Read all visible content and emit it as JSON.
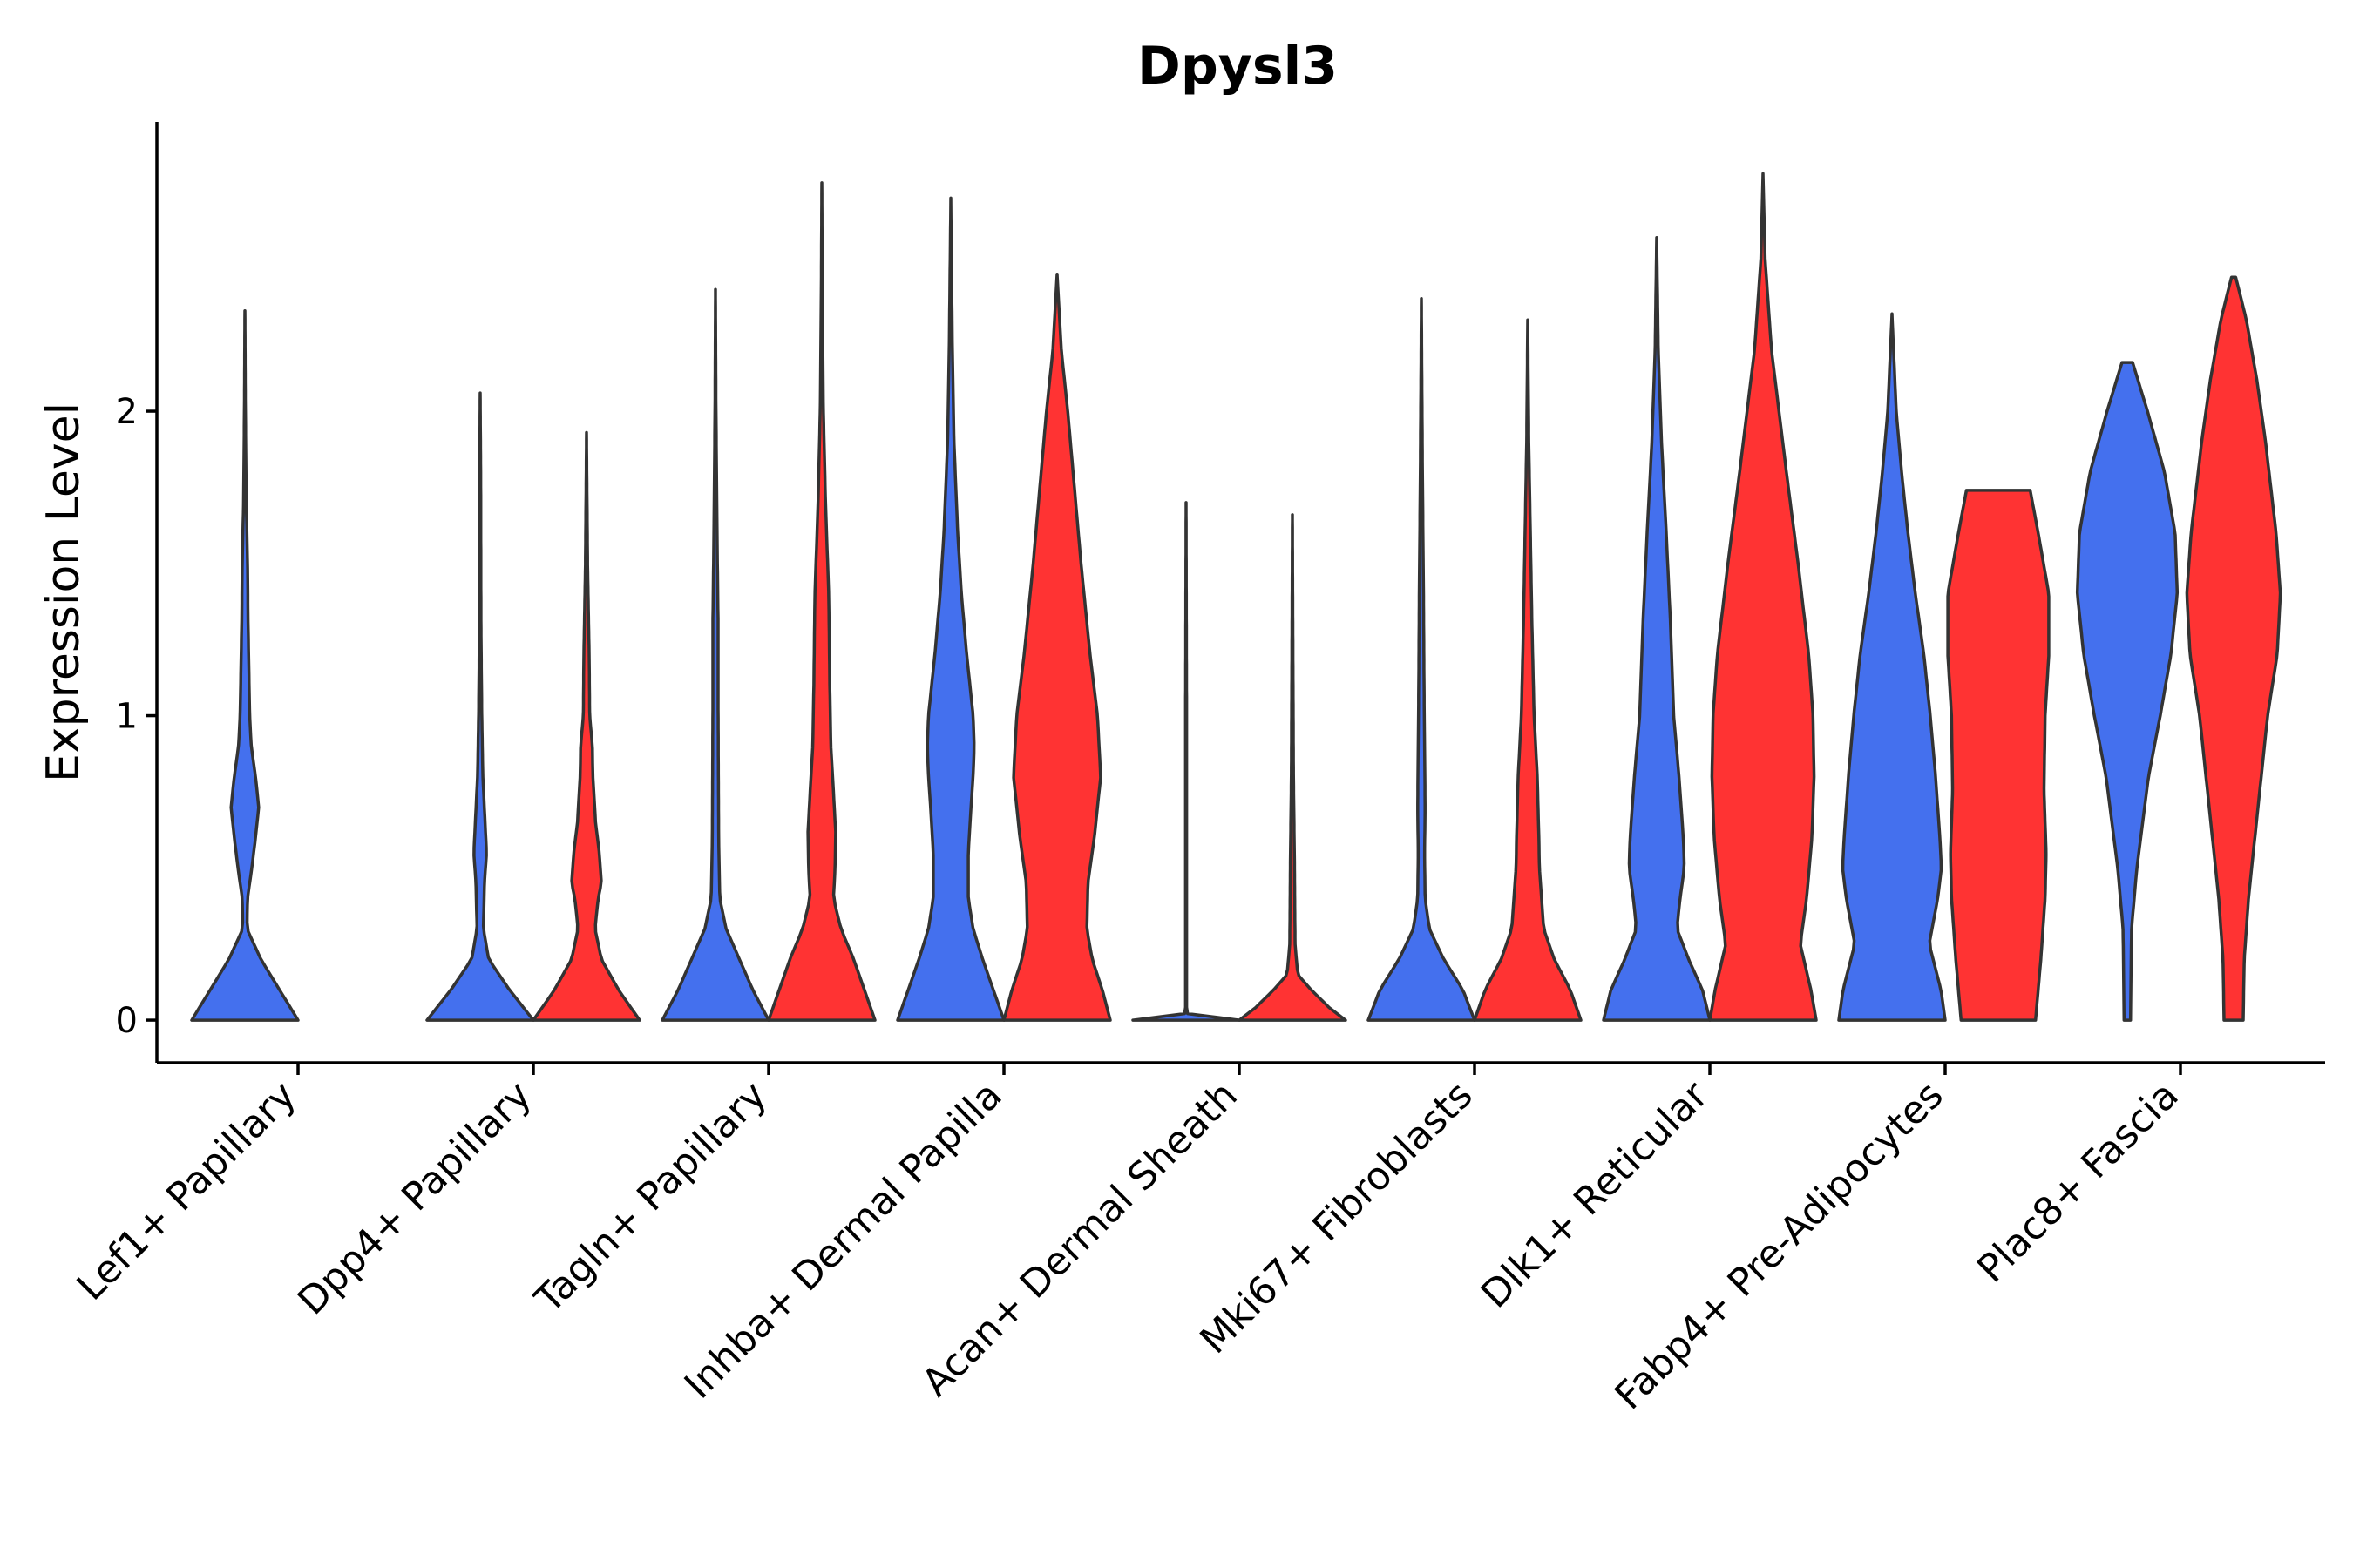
{
  "chart_data": {
    "type": "violin",
    "title": "Dpysl3",
    "xlabel": "",
    "ylabel": "Expression Level",
    "ylim": [
      -0.14,
      2.95
    ],
    "yticks": [
      0,
      1,
      2
    ],
    "legend": "none",
    "grid": false,
    "series_colors": {
      "blue": "#4470EE",
      "red": "#FF3333"
    },
    "categories": [
      "Lef1+ Papillary",
      "Dpp4+ Papillary",
      "Tagln+ Papillary",
      "Inhba+ Dermal Papilla",
      "Acan+ Dermal Sheath",
      "Mki67+ Fibroblasts",
      "Dlk1+ Reticular",
      "Fabp4+ Pre-Adipocytes",
      "Plac8+ Fascia"
    ],
    "violins": [
      {
        "category": "Lef1+ Papillary",
        "color": "blue",
        "min": 0,
        "max": 2.33,
        "profile": [
          [
            0,
            1.0
          ],
          [
            0.1,
            0.65
          ],
          [
            0.2,
            0.3
          ],
          [
            0.3,
            0.04
          ],
          [
            0.4,
            0.05
          ],
          [
            0.5,
            0.13
          ],
          [
            0.6,
            0.2
          ],
          [
            0.7,
            0.26
          ],
          [
            0.8,
            0.2
          ],
          [
            0.9,
            0.12
          ],
          [
            1.0,
            0.09
          ],
          [
            1.3,
            0.06
          ],
          [
            1.5,
            0.05
          ],
          [
            1.7,
            0.025
          ],
          [
            2.0,
            0.01
          ],
          [
            2.33,
            0
          ]
        ]
      },
      {
        "category": "Dpp4+ Papillary",
        "color": "blue",
        "min": 0,
        "max": 2.06,
        "profile": [
          [
            0,
            1.0
          ],
          [
            0.1,
            0.55
          ],
          [
            0.2,
            0.16
          ],
          [
            0.3,
            0.06
          ],
          [
            0.45,
            0.08
          ],
          [
            0.55,
            0.12
          ],
          [
            0.62,
            0.1
          ],
          [
            0.8,
            0.05
          ],
          [
            1.0,
            0.03
          ],
          [
            1.3,
            0.015
          ],
          [
            1.8,
            0.01
          ],
          [
            2.06,
            0
          ]
        ]
      },
      {
        "category": "Dpp4+ Papillary",
        "color": "red",
        "min": 0,
        "max": 1.93,
        "profile": [
          [
            0,
            1.0
          ],
          [
            0.1,
            0.6
          ],
          [
            0.2,
            0.28
          ],
          [
            0.3,
            0.16
          ],
          [
            0.4,
            0.22
          ],
          [
            0.45,
            0.28
          ],
          [
            0.55,
            0.24
          ],
          [
            0.65,
            0.17
          ],
          [
            0.8,
            0.12
          ],
          [
            0.9,
            0.11
          ],
          [
            1.0,
            0.06
          ],
          [
            1.2,
            0.05
          ],
          [
            1.5,
            0.02
          ],
          [
            1.93,
            0
          ]
        ]
      },
      {
        "category": "Tagln+ Papillary",
        "color": "blue",
        "min": 0,
        "max": 2.4,
        "profile": [
          [
            0,
            1.0
          ],
          [
            0.1,
            0.7
          ],
          [
            0.2,
            0.45
          ],
          [
            0.3,
            0.2
          ],
          [
            0.4,
            0.08
          ],
          [
            0.6,
            0.06
          ],
          [
            0.8,
            0.055
          ],
          [
            1.0,
            0.05
          ],
          [
            1.3,
            0.05
          ],
          [
            1.6,
            0.03
          ],
          [
            2.0,
            0.01
          ],
          [
            2.4,
            0
          ]
        ]
      },
      {
        "category": "Tagln+ Papillary",
        "color": "red",
        "min": 0,
        "max": 2.75,
        "profile": [
          [
            0,
            1.0
          ],
          [
            0.1,
            0.8
          ],
          [
            0.2,
            0.6
          ],
          [
            0.3,
            0.36
          ],
          [
            0.4,
            0.22
          ],
          [
            0.5,
            0.25
          ],
          [
            0.62,
            0.26
          ],
          [
            0.75,
            0.22
          ],
          [
            0.9,
            0.17
          ],
          [
            1.1,
            0.15
          ],
          [
            1.4,
            0.13
          ],
          [
            1.7,
            0.07
          ],
          [
            2.0,
            0.03
          ],
          [
            2.4,
            0.01
          ],
          [
            2.75,
            0
          ]
        ]
      },
      {
        "category": "Inhba+ Dermal Papilla",
        "color": "blue",
        "min": 0,
        "max": 2.7,
        "profile": [
          [
            0,
            1.0
          ],
          [
            0.1,
            0.8
          ],
          [
            0.2,
            0.6
          ],
          [
            0.3,
            0.42
          ],
          [
            0.4,
            0.33
          ],
          [
            0.55,
            0.33
          ],
          [
            0.7,
            0.38
          ],
          [
            0.8,
            0.42
          ],
          [
            0.9,
            0.44
          ],
          [
            1.0,
            0.42
          ],
          [
            1.2,
            0.3
          ],
          [
            1.4,
            0.2
          ],
          [
            1.6,
            0.13
          ],
          [
            1.9,
            0.06
          ],
          [
            2.2,
            0.03
          ],
          [
            2.7,
            0
          ]
        ]
      },
      {
        "category": "Inhba+ Dermal Papilla",
        "color": "red",
        "min": 0,
        "max": 2.45,
        "profile": [
          [
            0,
            1.0
          ],
          [
            0.1,
            0.85
          ],
          [
            0.2,
            0.66
          ],
          [
            0.3,
            0.56
          ],
          [
            0.45,
            0.58
          ],
          [
            0.6,
            0.7
          ],
          [
            0.8,
            0.82
          ],
          [
            1.0,
            0.76
          ],
          [
            1.2,
            0.62
          ],
          [
            1.5,
            0.45
          ],
          [
            1.8,
            0.3
          ],
          [
            2.0,
            0.2
          ],
          [
            2.2,
            0.08
          ],
          [
            2.45,
            0
          ]
        ]
      },
      {
        "category": "Acan+ Dermal Sheath",
        "color": "blue",
        "min": 0,
        "max": 1.7,
        "profile": [
          [
            0,
            1.0
          ],
          [
            0.01,
            0.05
          ],
          [
            0.03,
            0.01
          ],
          [
            0.5,
            0.01
          ],
          [
            1.0,
            0.01
          ],
          [
            1.7,
            0
          ]
        ]
      },
      {
        "category": "Acan+ Dermal Sheath",
        "color": "red",
        "min": 0,
        "max": 1.66,
        "profile": [
          [
            0,
            1.0
          ],
          [
            0.04,
            0.7
          ],
          [
            0.1,
            0.35
          ],
          [
            0.15,
            0.1
          ],
          [
            0.25,
            0.05
          ],
          [
            0.5,
            0.04
          ],
          [
            0.8,
            0.02
          ],
          [
            1.2,
            0.01
          ],
          [
            1.66,
            0
          ]
        ]
      },
      {
        "category": "Mki67+ Fibroblasts",
        "color": "blue",
        "min": 0,
        "max": 2.37,
        "profile": [
          [
            0,
            1.0
          ],
          [
            0.1,
            0.78
          ],
          [
            0.2,
            0.42
          ],
          [
            0.3,
            0.15
          ],
          [
            0.4,
            0.07
          ],
          [
            0.55,
            0.06
          ],
          [
            0.7,
            0.07
          ],
          [
            0.9,
            0.06
          ],
          [
            1.1,
            0.05
          ],
          [
            1.4,
            0.04
          ],
          [
            1.8,
            0.02
          ],
          [
            2.37,
            0
          ]
        ]
      },
      {
        "category": "Mki67+ Fibroblasts",
        "color": "red",
        "min": 0,
        "max": 2.3,
        "profile": [
          [
            0,
            1.0
          ],
          [
            0.1,
            0.8
          ],
          [
            0.2,
            0.5
          ],
          [
            0.3,
            0.3
          ],
          [
            0.4,
            0.26
          ],
          [
            0.5,
            0.22
          ],
          [
            0.6,
            0.21
          ],
          [
            0.8,
            0.18
          ],
          [
            1.0,
            0.12
          ],
          [
            1.3,
            0.08
          ],
          [
            1.6,
            0.05
          ],
          [
            1.9,
            0.02
          ],
          [
            2.3,
            0
          ]
        ]
      },
      {
        "category": "Dlk1+ Reticular",
        "color": "blue",
        "min": 0,
        "max": 2.57,
        "profile": [
          [
            0,
            1.0
          ],
          [
            0.1,
            0.86
          ],
          [
            0.2,
            0.6
          ],
          [
            0.3,
            0.38
          ],
          [
            0.4,
            0.44
          ],
          [
            0.5,
            0.52
          ],
          [
            0.6,
            0.5
          ],
          [
            0.8,
            0.42
          ],
          [
            1.0,
            0.32
          ],
          [
            1.3,
            0.26
          ],
          [
            1.6,
            0.18
          ],
          [
            1.9,
            0.09
          ],
          [
            2.2,
            0.03
          ],
          [
            2.57,
            0
          ]
        ]
      },
      {
        "category": "Dlk1+ Reticular",
        "color": "red",
        "min": 0,
        "max": 2.78,
        "profile": [
          [
            0,
            1.0
          ],
          [
            0.1,
            0.9
          ],
          [
            0.25,
            0.7
          ],
          [
            0.4,
            0.82
          ],
          [
            0.6,
            0.92
          ],
          [
            0.8,
            0.96
          ],
          [
            1.0,
            0.94
          ],
          [
            1.2,
            0.86
          ],
          [
            1.5,
            0.66
          ],
          [
            1.8,
            0.44
          ],
          [
            2.0,
            0.3
          ],
          [
            2.2,
            0.16
          ],
          [
            2.5,
            0.04
          ],
          [
            2.78,
            0
          ]
        ]
      },
      {
        "category": "Fabp4+ Pre-Adipocytes",
        "color": "blue",
        "min": 0,
        "max": 2.32,
        "profile": [
          [
            0,
            1.0
          ],
          [
            0.1,
            0.92
          ],
          [
            0.25,
            0.7
          ],
          [
            0.4,
            0.86
          ],
          [
            0.5,
            0.93
          ],
          [
            0.6,
            0.9
          ],
          [
            0.8,
            0.82
          ],
          [
            1.0,
            0.72
          ],
          [
            1.2,
            0.6
          ],
          [
            1.4,
            0.44
          ],
          [
            1.6,
            0.3
          ],
          [
            1.8,
            0.18
          ],
          [
            2.0,
            0.08
          ],
          [
            2.2,
            0.03
          ],
          [
            2.32,
            0
          ]
        ]
      },
      {
        "category": "Fabp4+ Pre-Adipocytes",
        "color": "red",
        "min": 0,
        "max": 1.74,
        "profile": [
          [
            0,
            0.7
          ],
          [
            0.2,
            0.8
          ],
          [
            0.4,
            0.88
          ],
          [
            0.55,
            0.9
          ],
          [
            0.75,
            0.86
          ],
          [
            1.0,
            0.88
          ],
          [
            1.2,
            0.95
          ],
          [
            1.4,
            0.95
          ],
          [
            1.6,
            0.75
          ],
          [
            1.74,
            0.6
          ]
        ]
      },
      {
        "category": "Plac8+ Fascia",
        "color": "blue",
        "min": 0,
        "max": 2.16,
        "profile": [
          [
            0,
            0.06
          ],
          [
            0.3,
            0.08
          ],
          [
            0.5,
            0.18
          ],
          [
            0.8,
            0.4
          ],
          [
            1.0,
            0.62
          ],
          [
            1.2,
            0.82
          ],
          [
            1.4,
            0.94
          ],
          [
            1.6,
            0.9
          ],
          [
            1.8,
            0.7
          ],
          [
            2.0,
            0.38
          ],
          [
            2.16,
            0.1
          ]
        ]
      },
      {
        "category": "Plac8+ Fascia",
        "color": "red",
        "min": 0,
        "max": 2.44,
        "profile": [
          [
            0,
            0.18
          ],
          [
            0.2,
            0.2
          ],
          [
            0.4,
            0.28
          ],
          [
            0.7,
            0.46
          ],
          [
            1.0,
            0.64
          ],
          [
            1.2,
            0.82
          ],
          [
            1.4,
            0.88
          ],
          [
            1.6,
            0.8
          ],
          [
            1.9,
            0.6
          ],
          [
            2.1,
            0.44
          ],
          [
            2.3,
            0.24
          ],
          [
            2.44,
            0.04
          ]
        ]
      }
    ]
  }
}
